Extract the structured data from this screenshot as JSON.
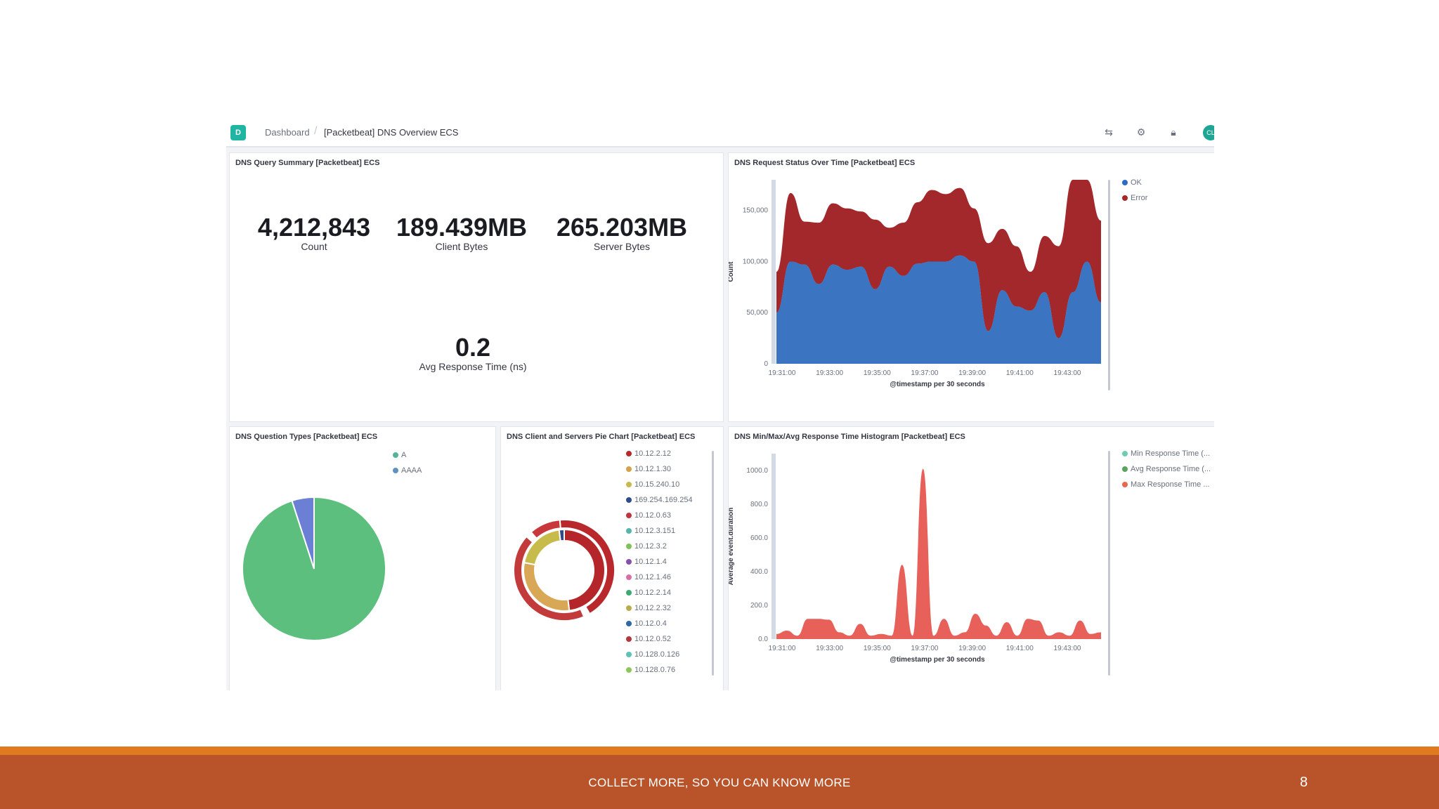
{
  "breadcrumb": {
    "root": "Dashboard",
    "current": "[Packetbeat] DNS Overview ECS",
    "logo": "D"
  },
  "topbar_icons": [
    "share-icon",
    "settings-icon",
    "lock-icon"
  ],
  "avatar_initials": "CL",
  "summary": {
    "title": "DNS Query Summary [Packetbeat] ECS",
    "metrics": [
      {
        "value": "4,212,843",
        "label": "Count"
      },
      {
        "value": "189.439MB",
        "label": "Client Bytes"
      },
      {
        "value": "265.203MB",
        "label": "Server Bytes"
      },
      {
        "value": "0.2",
        "label": "Avg Response Time (ns)"
      }
    ]
  },
  "status_chart": {
    "title": "DNS Request Status Over Time [Packetbeat] ECS",
    "legend": [
      {
        "name": "OK",
        "color": "#2d6bc5"
      },
      {
        "name": "Error",
        "color": "#a8282a"
      }
    ],
    "chart_data": {
      "type": "area",
      "stacked": true,
      "xlabel": "@timestamp per 30 seconds",
      "ylabel": "Count",
      "ylim": [
        0,
        180000
      ],
      "yticks": [
        "0",
        "50,000",
        "100,000",
        "150,000"
      ],
      "xticks": [
        "19:31:00",
        "19:33:00",
        "19:35:00",
        "19:37:00",
        "19:39:00",
        "19:41:00",
        "19:43:00"
      ],
      "series": [
        {
          "name": "OK",
          "color": "#3b74c0",
          "values": [
            50000,
            100000,
            97000,
            78000,
            97000,
            92000,
            95000,
            73000,
            95000,
            86000,
            98000,
            100000,
            100000,
            106000,
            100000,
            32000,
            72000,
            56000,
            52000,
            70000,
            25000,
            70000,
            100000,
            60000
          ]
        },
        {
          "name": "Error",
          "color": "#a3282b",
          "values": [
            40000,
            67000,
            42000,
            60000,
            60000,
            60000,
            54000,
            68000,
            38000,
            52000,
            60000,
            70000,
            66000,
            66000,
            52000,
            86000,
            60000,
            59000,
            38000,
            55000,
            90000,
            110000,
            80000,
            80000
          ]
        }
      ]
    }
  },
  "question_types": {
    "title": "DNS Question Types [Packetbeat] ECS",
    "legend": [
      {
        "name": "A",
        "color": "#54b399"
      },
      {
        "name": "AAAA",
        "color": "#6092c0"
      }
    ],
    "chart_data": {
      "type": "pie",
      "labels": [
        "A",
        "AAAA"
      ],
      "values": [
        95,
        5
      ],
      "colors": [
        "#5cbf7e",
        "#6b7fd4"
      ]
    }
  },
  "client_servers": {
    "title": "DNS Client and Servers Pie Chart [Packetbeat] ECS",
    "legend": [
      {
        "name": "10.12.2.12",
        "color": "#b7292d"
      },
      {
        "name": "10.12.1.30",
        "color": "#d7a04a"
      },
      {
        "name": "10.15.240.10",
        "color": "#c7b94a"
      },
      {
        "name": "169.254.169.254",
        "color": "#2f4b8c"
      },
      {
        "name": "10.12.0.63",
        "color": "#c2343b"
      },
      {
        "name": "10.12.3.151",
        "color": "#54b7a9"
      },
      {
        "name": "10.12.3.2",
        "color": "#7ec25a"
      },
      {
        "name": "10.12.1.4",
        "color": "#8a4fa8"
      },
      {
        "name": "10.12.1.46",
        "color": "#d76fa0"
      },
      {
        "name": "10.12.2.14",
        "color": "#3bab6f"
      },
      {
        "name": "10.12.2.32",
        "color": "#b8ad4a"
      },
      {
        "name": "10.12.0.4",
        "color": "#2f67a8"
      },
      {
        "name": "10.12.0.52",
        "color": "#b3383e"
      },
      {
        "name": "10.128.0.126",
        "color": "#5cc3b5"
      },
      {
        "name": "10.128.0.76",
        "color": "#8fc55a"
      }
    ],
    "chart_data": {
      "type": "pie",
      "donut": true,
      "inner_ring": [
        {
          "label": "10.12.2.12",
          "value": 48,
          "color": "#b4262a"
        },
        {
          "label": "10.12.1.30",
          "value": 30,
          "color": "#d9a856"
        },
        {
          "label": "10.15.240.10",
          "value": 20,
          "color": "#c7bb4c"
        },
        {
          "label": "169.254.169.254",
          "value": 2,
          "color": "#2f4b8c"
        }
      ],
      "outer_ring": [
        {
          "label": "10.12.0.63",
          "value": 43,
          "color": "#b8282d"
        },
        {
          "label": "10.12.1.30",
          "value": 2,
          "color": "#ffffff"
        },
        {
          "label": "10.12.2.12",
          "value": 43,
          "color": "#c23a3a"
        },
        {
          "label": "10.12.3.2",
          "value": 2,
          "color": "#ffffff"
        },
        {
          "label": "10.12.1.4",
          "value": 10,
          "color": "#c7373c"
        }
      ]
    }
  },
  "histogram": {
    "title": "DNS Min/Max/Avg Response Time Histogram [Packetbeat] ECS",
    "legend": [
      {
        "name": "Min Response Time (...",
        "color": "#6dccb1"
      },
      {
        "name": "Avg Response Time (...",
        "color": "#5ba45d"
      },
      {
        "name": "Max Response Time ...",
        "color": "#e7664c"
      }
    ],
    "chart_data": {
      "type": "area",
      "xlabel": "@timestamp per 30 seconds",
      "ylabel": "Average event.duration",
      "ylim": [
        0,
        1100
      ],
      "yticks": [
        "0.0",
        "200.0",
        "400.0",
        "600.0",
        "800.0",
        "1000.0"
      ],
      "xticks": [
        "19:31:00",
        "19:33:00",
        "19:35:00",
        "19:37:00",
        "19:39:00",
        "19:41:00",
        "19:43:00"
      ],
      "series": [
        {
          "name": "Max Response Time",
          "color": "#e8605a",
          "values": [
            30,
            50,
            20,
            120,
            120,
            115,
            40,
            20,
            90,
            20,
            30,
            20,
            440,
            20,
            1010,
            20,
            120,
            20,
            40,
            150,
            80,
            20,
            100,
            20,
            120,
            110,
            20,
            40,
            20,
            110,
            30,
            40
          ]
        }
      ]
    }
  },
  "footer": {
    "text": "COLLECT MORE, SO YOU CAN KNOW MORE",
    "page": "8"
  }
}
